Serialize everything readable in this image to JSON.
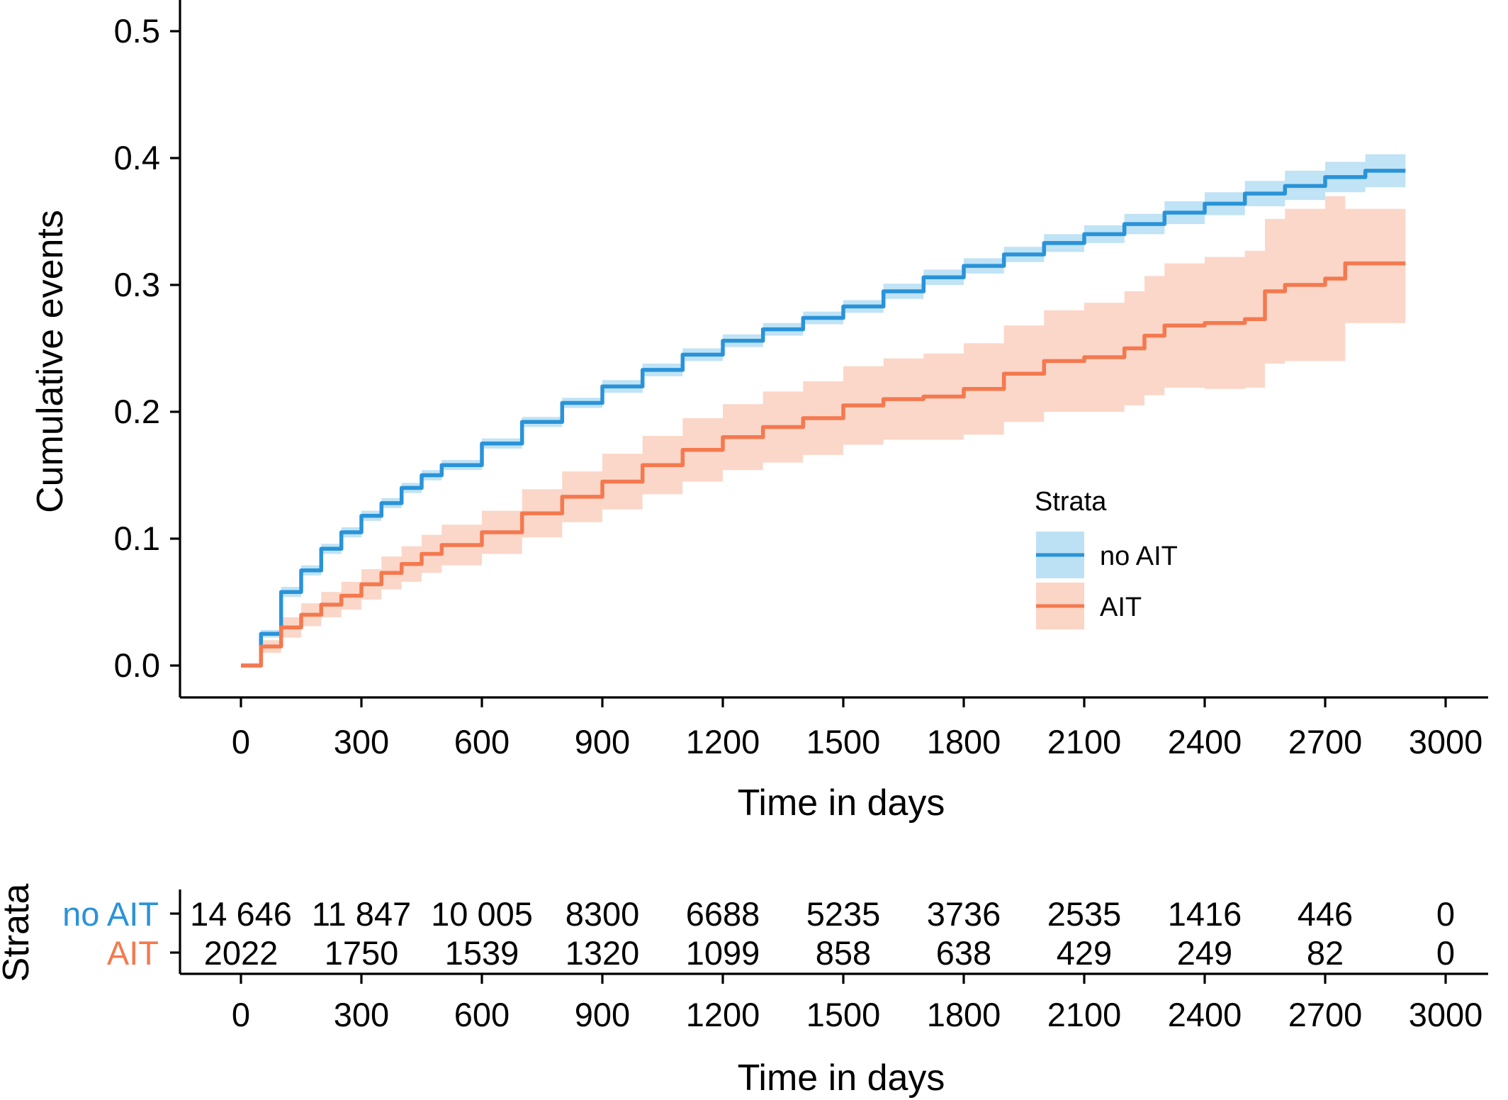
{
  "chart_data": [
    {
      "type": "line",
      "title": "",
      "xlabel": "Time in days",
      "ylabel": "Cumulative events",
      "xlim": [
        -150,
        3000
      ],
      "ylim": [
        -0.025,
        0.525
      ],
      "x_ticks": [
        0,
        300,
        600,
        900,
        1200,
        1500,
        1800,
        2100,
        2400,
        2700,
        3000
      ],
      "y_ticks": [
        0.0,
        0.1,
        0.2,
        0.3,
        0.4,
        0.5
      ],
      "y_tick_labels": [
        "0.0",
        "0.1",
        "0.2",
        "0.3",
        "0.4",
        "0.5"
      ],
      "grid": false,
      "legend": {
        "title": "Strata",
        "placement": "right-center",
        "entries": [
          "no AIT",
          "AIT"
        ]
      },
      "series": [
        {
          "name": "no AIT",
          "color": "#2A93D8",
          "band_color": "#BDE1F4",
          "x": [
            0,
            50,
            100,
            150,
            200,
            250,
            300,
            350,
            400,
            450,
            500,
            600,
            700,
            800,
            900,
            1000,
            1100,
            1200,
            1300,
            1400,
            1500,
            1600,
            1700,
            1800,
            1900,
            2000,
            2100,
            2200,
            2300,
            2400,
            2500,
            2600,
            2700,
            2800,
            2900
          ],
          "y": [
            0.0,
            0.025,
            0.058,
            0.075,
            0.092,
            0.105,
            0.118,
            0.128,
            0.14,
            0.15,
            0.158,
            0.175,
            0.192,
            0.207,
            0.22,
            0.233,
            0.245,
            0.256,
            0.265,
            0.274,
            0.283,
            0.295,
            0.306,
            0.315,
            0.324,
            0.333,
            0.34,
            0.348,
            0.357,
            0.364,
            0.372,
            0.378,
            0.385,
            0.39,
            0.39
          ],
          "lower": [
            0.0,
            0.022,
            0.054,
            0.071,
            0.088,
            0.101,
            0.114,
            0.124,
            0.136,
            0.146,
            0.154,
            0.171,
            0.188,
            0.203,
            0.215,
            0.228,
            0.24,
            0.251,
            0.26,
            0.269,
            0.278,
            0.289,
            0.3,
            0.309,
            0.318,
            0.326,
            0.333,
            0.34,
            0.348,
            0.355,
            0.362,
            0.367,
            0.373,
            0.377,
            0.377
          ],
          "upper": [
            0.0,
            0.028,
            0.062,
            0.079,
            0.096,
            0.109,
            0.122,
            0.132,
            0.144,
            0.154,
            0.162,
            0.179,
            0.196,
            0.211,
            0.225,
            0.238,
            0.25,
            0.261,
            0.27,
            0.279,
            0.288,
            0.301,
            0.312,
            0.321,
            0.33,
            0.34,
            0.347,
            0.356,
            0.366,
            0.373,
            0.382,
            0.39,
            0.397,
            0.403,
            0.403
          ]
        },
        {
          "name": "AIT",
          "color": "#F4794F",
          "band_color": "#FBD5C6",
          "x": [
            0,
            50,
            100,
            150,
            200,
            250,
            300,
            350,
            400,
            450,
            500,
            600,
            700,
            800,
            900,
            1000,
            1100,
            1200,
            1300,
            1400,
            1500,
            1600,
            1700,
            1800,
            1900,
            2000,
            2100,
            2200,
            2250,
            2300,
            2400,
            2500,
            2550,
            2600,
            2700,
            2750,
            2800,
            2900
          ],
          "y": [
            0.0,
            0.015,
            0.03,
            0.04,
            0.048,
            0.055,
            0.064,
            0.073,
            0.08,
            0.088,
            0.095,
            0.105,
            0.12,
            0.133,
            0.145,
            0.158,
            0.17,
            0.18,
            0.188,
            0.195,
            0.205,
            0.21,
            0.212,
            0.218,
            0.23,
            0.24,
            0.243,
            0.25,
            0.26,
            0.268,
            0.27,
            0.273,
            0.295,
            0.3,
            0.305,
            0.317,
            0.317,
            0.317
          ],
          "lower": [
            0.0,
            0.01,
            0.022,
            0.031,
            0.038,
            0.044,
            0.052,
            0.06,
            0.066,
            0.073,
            0.079,
            0.088,
            0.101,
            0.113,
            0.123,
            0.135,
            0.145,
            0.154,
            0.16,
            0.166,
            0.174,
            0.178,
            0.178,
            0.182,
            0.192,
            0.2,
            0.2,
            0.205,
            0.213,
            0.219,
            0.218,
            0.219,
            0.238,
            0.24,
            0.24,
            0.27,
            0.27,
            0.27
          ],
          "upper": [
            0.0,
            0.02,
            0.038,
            0.049,
            0.058,
            0.066,
            0.076,
            0.086,
            0.094,
            0.103,
            0.111,
            0.122,
            0.139,
            0.153,
            0.167,
            0.181,
            0.195,
            0.206,
            0.216,
            0.224,
            0.236,
            0.242,
            0.246,
            0.254,
            0.268,
            0.28,
            0.286,
            0.295,
            0.307,
            0.317,
            0.322,
            0.327,
            0.352,
            0.36,
            0.37,
            0.36,
            0.36,
            0.36
          ]
        }
      ]
    },
    {
      "type": "table",
      "title": "",
      "xlabel": "Time in days",
      "ylabel": "Strata",
      "x_ticks": [
        0,
        300,
        600,
        900,
        1200,
        1500,
        1800,
        2100,
        2400,
        2700,
        3000
      ],
      "rows": [
        {
          "name": "no AIT",
          "color": "#2A93D8",
          "values": [
            "14 646",
            "11 847",
            "10 005",
            "8300",
            "6688",
            "5235",
            "3736",
            "2535",
            "1416",
            "446",
            "0"
          ]
        },
        {
          "name": "AIT",
          "color": "#F4794F",
          "values": [
            "2022",
            "1750",
            "1539",
            "1320",
            "1099",
            "858",
            "638",
            "429",
            "249",
            "82",
            "0"
          ]
        }
      ]
    }
  ]
}
